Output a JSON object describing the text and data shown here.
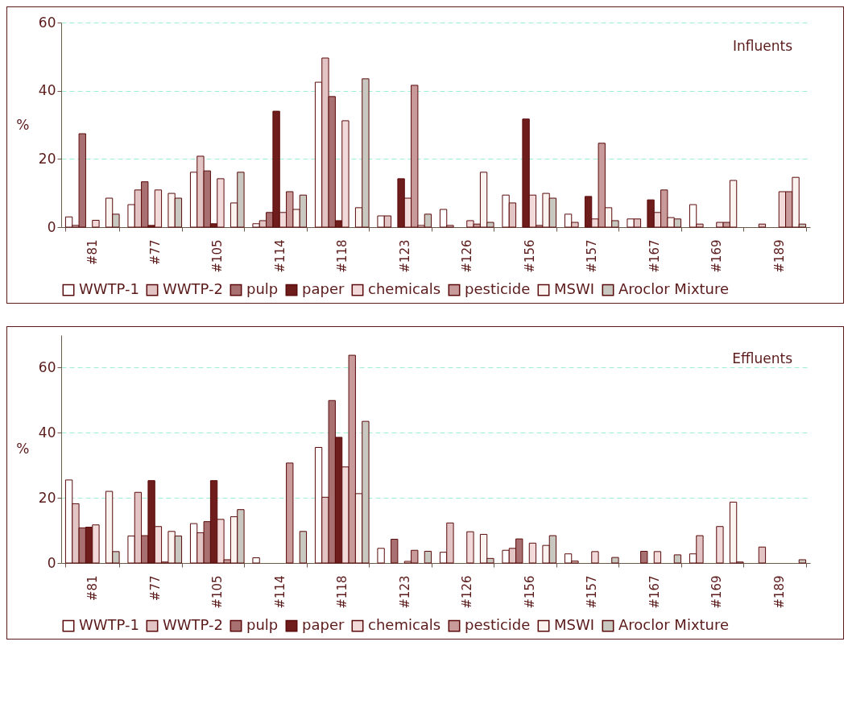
{
  "chart_data": [
    {
      "type": "bar",
      "annotations": [
        "Influents"
      ],
      "ylabel": "%",
      "categories": [
        "#81",
        "#77",
        "#105",
        "#114",
        "#118",
        "#123",
        "#126",
        "#156",
        "#157",
        "#167",
        "#169",
        "#189"
      ],
      "ylim": [
        0,
        60
      ],
      "yticks": [
        0,
        20,
        40,
        60
      ],
      "grid": "y",
      "legend": "bottom",
      "series": [
        {
          "name": "WWTP-1",
          "color": "#ffffff",
          "values": [
            3,
            6.6,
            16.1,
            1,
            42.5,
            3.3,
            5.2,
            9.4,
            3.8,
            2.4,
            6.6,
            null
          ]
        },
        {
          "name": "WWTP-2",
          "color": "#e2c4c4",
          "values": [
            0.5,
            10.9,
            20.8,
            1.9,
            49.6,
            3.3,
            0.5,
            7.1,
            1.4,
            2.4,
            0.9,
            0.9
          ]
        },
        {
          "name": "pulp",
          "color": "#a87070",
          "values": [
            27.4,
            13.3,
            16.5,
            4.3,
            38.3,
            null,
            null,
            null,
            null,
            null,
            null,
            null
          ]
        },
        {
          "name": "paper",
          "color": "#6e1c1c",
          "values": [
            null,
            0.5,
            1,
            34,
            1.9,
            14.2,
            null,
            31.7,
            9,
            8,
            null,
            null
          ]
        },
        {
          "name": "chemicals",
          "color": "#f2dada",
          "values": [
            2,
            10.9,
            14.2,
            4.3,
            31.2,
            8.5,
            1.9,
            9.4,
            2.4,
            4.3,
            1.4,
            10.4
          ]
        },
        {
          "name": "pesticide",
          "color": "#c89a9a",
          "values": [
            null,
            null,
            null,
            10.4,
            null,
            41.6,
            0.9,
            0.5,
            24.6,
            10.9,
            1.4,
            10.4
          ]
        },
        {
          "name": "MSWI",
          "color": "#fbf3f0",
          "values": [
            8.5,
            9.9,
            7.1,
            5.2,
            5.7,
            0.5,
            16.1,
            9.9,
            5.7,
            2.8,
            13.7,
            14.6
          ]
        },
        {
          "name": "Aroclor Mixture",
          "color": "#c8c8c0",
          "values": [
            3.8,
            8.5,
            16.1,
            9.4,
            43.5,
            3.8,
            1.4,
            8.5,
            1.9,
            2.4,
            null,
            0.9
          ]
        }
      ]
    },
    {
      "type": "bar",
      "annotations": [
        "Effluents"
      ],
      "ylabel": "%",
      "categories": [
        "#81",
        "#77",
        "#105",
        "#114",
        "#118",
        "#123",
        "#126",
        "#156",
        "#157",
        "#167",
        "#169",
        "#189"
      ],
      "ylim": [
        0,
        70
      ],
      "yticks": [
        0,
        20,
        40,
        60
      ],
      "grid": "y",
      "legend": "bottom",
      "series": [
        {
          "name": "WWTP-1",
          "color": "#ffffff",
          "values": [
            25.5,
            8.3,
            12.1,
            1.6,
            35.5,
            4.5,
            3.3,
            3.9,
            2.8,
            null,
            2.8,
            null
          ]
        },
        {
          "name": "WWTP-2",
          "color": "#e2c4c4",
          "values": [
            18.2,
            21.7,
            9.3,
            null,
            20.2,
            null,
            12.3,
            4.5,
            0.6,
            null,
            8.4,
            4.9
          ]
        },
        {
          "name": "pulp",
          "color": "#a87070",
          "values": [
            10.8,
            8.4,
            12.7,
            null,
            49.9,
            7.3,
            null,
            7.4,
            null,
            3.6,
            null,
            null
          ]
        },
        {
          "name": "paper",
          "color": "#6e1c1c",
          "values": [
            11,
            25.3,
            25.3,
            null,
            38.6,
            null,
            null,
            null,
            null,
            null,
            null,
            null
          ]
        },
        {
          "name": "chemicals",
          "color": "#f2dada",
          "values": [
            11.7,
            11.2,
            13.4,
            null,
            29.5,
            0.5,
            9.6,
            6.1,
            3.5,
            3.5,
            11.2,
            null
          ]
        },
        {
          "name": "pesticide",
          "color": "#c89a9a",
          "values": [
            null,
            0.3,
            1,
            30.7,
            63.8,
            3.9,
            null,
            null,
            null,
            null,
            null,
            null
          ]
        },
        {
          "name": "MSWI",
          "color": "#fbf3f0",
          "values": [
            22,
            9.7,
            14.2,
            null,
            21.3,
            null,
            8.8,
            5.4,
            null,
            null,
            18.7,
            null
          ]
        },
        {
          "name": "Aroclor Mixture",
          "color": "#c8c8c0",
          "values": [
            3.5,
            8.3,
            16.4,
            9.7,
            43.5,
            3.6,
            1.4,
            8.4,
            1.7,
            2.5,
            0.3,
            1
          ]
        }
      ]
    }
  ]
}
